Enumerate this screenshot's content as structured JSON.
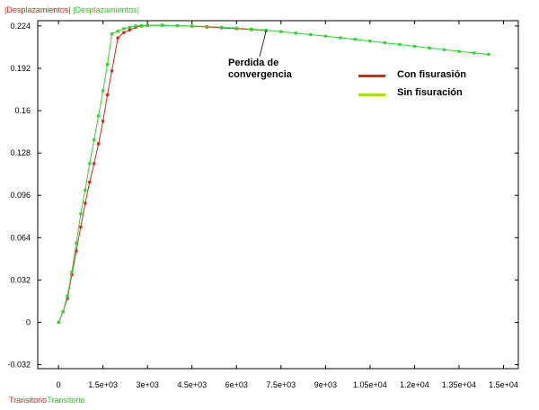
{
  "header": {
    "y_title_1": "|Desplazamientos|",
    "y_title_2": "|Desplazamientos|",
    "x_title_1": "Transitorio",
    "x_title_2": "Transitorio"
  },
  "colors": {
    "red": "#e0221a",
    "green": "#22dd22",
    "legend_green": "#a8e000",
    "frame": "#000000"
  },
  "chart_data": {
    "type": "line",
    "xlim": [
      -700,
      15500
    ],
    "ylim": [
      -0.035,
      0.228
    ],
    "x_ticks": [
      0,
      1500,
      3000,
      4500,
      6000,
      7500,
      9000,
      10500,
      12000,
      13500,
      15000
    ],
    "x_tick_labels": [
      "0",
      "1.5e+03",
      "3e+03",
      "4.5e+03",
      "6e+03",
      "7.5e+03",
      "9e+03",
      "1.05e+04",
      "1.2e+04",
      "1.35e+04",
      "1.5e+04"
    ],
    "y_ticks": [
      -0.032,
      0,
      0.032,
      0.064,
      0.096,
      0.128,
      0.16,
      0.192,
      0.224
    ],
    "y_tick_labels": [
      "-0.032",
      "0",
      "0.032",
      "0.064",
      "0.096",
      "0.128",
      "0.16",
      "0.192",
      "0.224"
    ],
    "legend": {
      "position": "top-right",
      "entries": [
        "Con fisurasión",
        "Sin fisuración"
      ]
    },
    "annotation": {
      "lines": [
        "Perdida de",
        "convergencia"
      ],
      "point": [
        7000,
        0.2205
      ]
    },
    "series": [
      {
        "name": "Con fisurasión",
        "color": "#e0221a",
        "x": [
          0,
          150,
          300,
          450,
          600,
          750,
          900,
          1050,
          1200,
          1350,
          1500,
          1650,
          1800,
          2000,
          2200,
          2400,
          2600,
          2800,
          3000,
          3500,
          4000,
          4500,
          5000,
          5500,
          6000,
          6500,
          7000
        ],
        "y": [
          0,
          0.008,
          0.018,
          0.036,
          0.054,
          0.072,
          0.09,
          0.106,
          0.12,
          0.135,
          0.152,
          0.172,
          0.19,
          0.215,
          0.219,
          0.221,
          0.223,
          0.224,
          0.2245,
          0.2245,
          0.2242,
          0.2238,
          0.2232,
          0.2226,
          0.222,
          0.2213,
          0.2205
        ]
      },
      {
        "name": "Sin fisuración",
        "color": "#22dd22",
        "x": [
          0,
          150,
          300,
          450,
          600,
          750,
          900,
          1050,
          1200,
          1350,
          1500,
          1650,
          1800,
          2000,
          2200,
          2400,
          2600,
          2800,
          3000,
          3500,
          4000,
          4500,
          5000,
          5500,
          6000,
          6500,
          7000,
          7500,
          8000,
          8500,
          9000,
          9500,
          10000,
          10500,
          11000,
          11500,
          12000,
          12500,
          13000,
          13500,
          14000,
          14500
        ],
        "y": [
          0,
          0.008,
          0.02,
          0.038,
          0.06,
          0.082,
          0.1,
          0.12,
          0.138,
          0.156,
          0.175,
          0.195,
          0.218,
          0.22,
          0.222,
          0.223,
          0.224,
          0.2243,
          0.2244,
          0.2244,
          0.2242,
          0.224,
          0.2236,
          0.2231,
          0.2224,
          0.2216,
          0.2208,
          0.2197,
          0.2186,
          0.2175,
          0.2163,
          0.2151,
          0.2139,
          0.2126,
          0.2113,
          0.21,
          0.2087,
          0.2074,
          0.2061,
          0.2048,
          0.2036,
          0.2025
        ]
      }
    ]
  }
}
